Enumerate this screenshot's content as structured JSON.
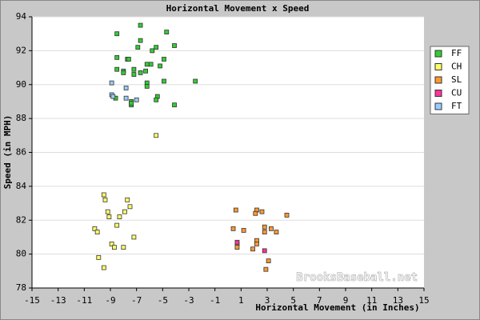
{
  "chart_data": {
    "type": "scatter",
    "title": "Horizontal Movement x Speed",
    "x_label": "Horizontal Movement (in Inches)",
    "y_label": "Speed (in MPH)",
    "watermark": "BrooksBaseball.net",
    "xlim": [
      -15,
      15
    ],
    "xticks": [
      -15,
      -13,
      -11,
      -9,
      -7,
      -5,
      -3,
      -1,
      1,
      3,
      5,
      7,
      9,
      11,
      13,
      15
    ],
    "ylim": [
      78,
      94
    ],
    "yticks": [
      78,
      80,
      82,
      84,
      86,
      88,
      90,
      92,
      94
    ],
    "grid": true,
    "legend": "right",
    "series": [
      {
        "name": "FF",
        "color": "#33cc33",
        "x": [
          -6.7,
          -8.5,
          -4.7,
          -6.7,
          -6.9,
          -5.8,
          -8.5,
          -7.7,
          -5.5,
          -4.1,
          -4.9,
          -7.6,
          -5.9,
          -5.2,
          -6.2,
          -8.5,
          -7.2,
          -8.0,
          -6.3,
          -8.0,
          -6.7,
          -7.2,
          -2.5,
          -4.9,
          -6.2,
          -8.6,
          -6.2,
          -5.4,
          -5.5,
          -7.4,
          -4.1,
          -7.4,
          -7.4
        ],
        "values": [
          93.5,
          93.0,
          93.1,
          92.6,
          92.2,
          92.0,
          91.6,
          91.5,
          92.2,
          92.3,
          91.5,
          91.5,
          91.2,
          91.1,
          91.2,
          90.9,
          90.9,
          90.8,
          90.8,
          90.7,
          90.7,
          90.6,
          90.2,
          90.2,
          90.1,
          89.2,
          89.9,
          89.3,
          89.1,
          89.0,
          88.8,
          88.8,
          88.9
        ]
      },
      {
        "name": "CH",
        "color": "#ffff66",
        "x": [
          -5.5,
          -9.5,
          -9.4,
          -7.7,
          -7.5,
          -9.2,
          -9.1,
          -8.3,
          -7.9,
          -8.5,
          -10.2,
          -10.0,
          -7.2,
          -8.9,
          -8.7,
          -8.0,
          -9.9,
          -9.5
        ],
        "values": [
          87.0,
          83.5,
          83.2,
          83.2,
          82.8,
          82.5,
          82.2,
          82.2,
          82.5,
          81.7,
          81.5,
          81.3,
          81.0,
          80.6,
          80.4,
          80.4,
          79.8,
          79.2
        ]
      },
      {
        "name": "SL",
        "color": "#ff9933",
        "x": [
          0.6,
          2.2,
          2.1,
          2.6,
          4.5,
          0.4,
          1.2,
          2.8,
          3.3,
          3.7,
          2.8,
          2.2,
          2.2,
          0.7,
          0.7,
          1.9,
          3.1,
          2.9
        ],
        "values": [
          82.6,
          82.6,
          82.4,
          82.5,
          82.3,
          81.5,
          81.4,
          81.6,
          81.5,
          81.3,
          81.3,
          80.8,
          80.6,
          80.6,
          80.4,
          80.3,
          79.6,
          79.1
        ]
      },
      {
        "name": "CU",
        "color": "#ff3399",
        "x": [
          0.7,
          2.8
        ],
        "values": [
          80.7,
          80.2
        ]
      },
      {
        "name": "FT",
        "color": "#99ccff",
        "x": [
          -8.9,
          -8.9,
          -7.8,
          -7.8,
          -7.0,
          -8.8
        ],
        "values": [
          90.1,
          89.4,
          89.8,
          89.2,
          89.1,
          89.3
        ]
      }
    ]
  }
}
